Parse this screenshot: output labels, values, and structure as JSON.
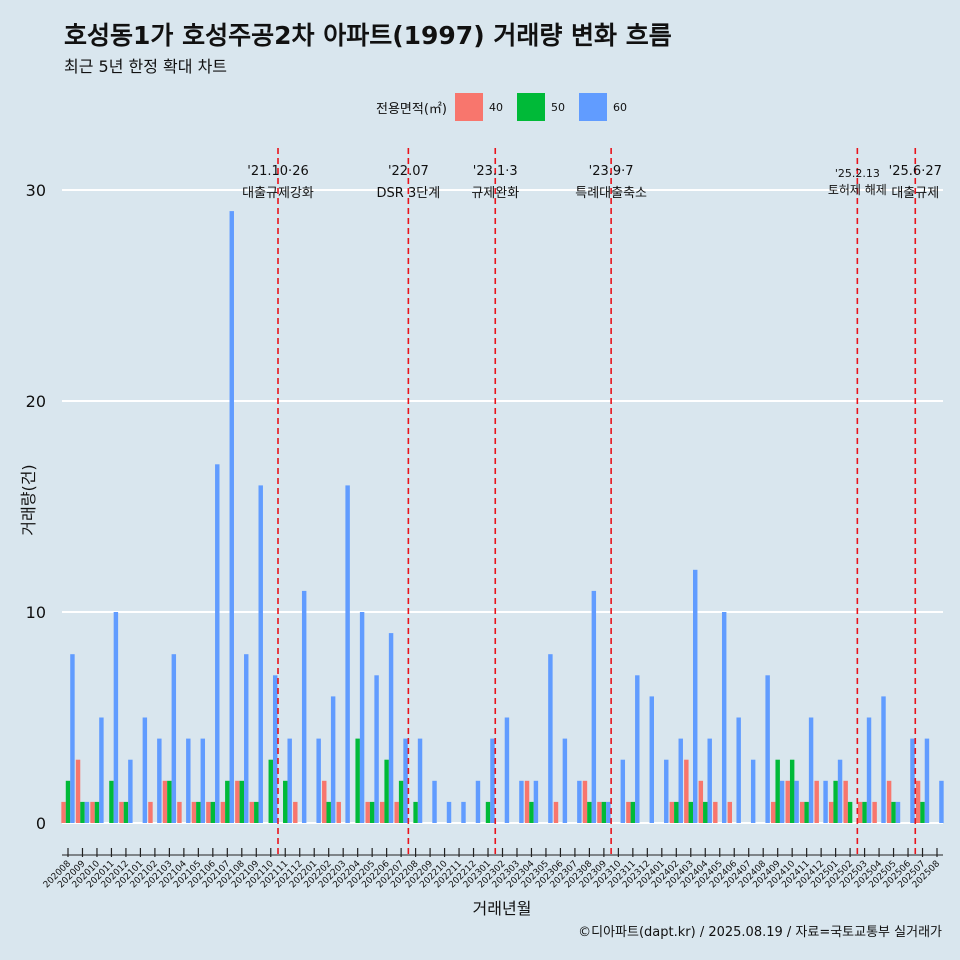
{
  "chart_data": {
    "type": "bar",
    "title": "호성동1가 호성주공2차 아파트(1997) 거래량 변화 흐름",
    "subtitle": "최근 5년 한정 확대 차트",
    "xlabel": "거래년월",
    "ylabel": "거래량(건)",
    "ylim": [
      0,
      30
    ],
    "y_ticks": [
      0,
      10,
      20,
      30
    ],
    "legend_title": "전용면적(㎡)",
    "legend_position": "top",
    "grid": "horizontal",
    "caption": "©디아파트(dapt.kr) / 2025.08.19 / 자료=국토교통부 실거래가",
    "categories": [
      "202008",
      "202009",
      "202010",
      "202011",
      "202012",
      "202101",
      "202102",
      "202103",
      "202104",
      "202105",
      "202106",
      "202107",
      "202108",
      "202109",
      "202110",
      "202111",
      "202112",
      "202201",
      "202202",
      "202203",
      "202204",
      "202205",
      "202206",
      "202207",
      "202208",
      "202209",
      "202210",
      "202211",
      "202212",
      "202301",
      "202302",
      "202303",
      "202304",
      "202305",
      "202306",
      "202307",
      "202308",
      "202309",
      "202310",
      "202311",
      "202312",
      "202401",
      "202402",
      "202403",
      "202404",
      "202405",
      "202406",
      "202407",
      "202408",
      "202409",
      "202410",
      "202411",
      "202412",
      "202501",
      "202502",
      "202503",
      "202504",
      "202505",
      "202506",
      "202507",
      "202508"
    ],
    "series": [
      {
        "name": "40",
        "color": "#f8766d",
        "values": [
          1,
          3,
          1,
          0,
          1,
          0,
          1,
          2,
          1,
          1,
          1,
          1,
          2,
          1,
          0,
          0,
          1,
          0,
          2,
          1,
          0,
          1,
          1,
          1,
          0,
          0,
          0,
          0,
          0,
          0,
          0,
          0,
          2,
          0,
          1,
          0,
          2,
          1,
          0,
          1,
          0,
          0,
          1,
          3,
          2,
          1,
          1,
          0,
          0,
          1,
          2,
          1,
          2,
          1,
          2,
          1,
          1,
          2,
          0,
          2,
          0
        ]
      },
      {
        "name": "50",
        "color": "#00ba38",
        "values": [
          2,
          1,
          1,
          2,
          1,
          0,
          0,
          2,
          0,
          1,
          1,
          2,
          2,
          1,
          3,
          2,
          0,
          0,
          1,
          0,
          4,
          1,
          3,
          2,
          1,
          0,
          0,
          0,
          0,
          1,
          0,
          0,
          1,
          0,
          0,
          0,
          1,
          1,
          0,
          1,
          0,
          0,
          1,
          1,
          1,
          0,
          0,
          0,
          0,
          3,
          3,
          1,
          0,
          2,
          1,
          1,
          0,
          1,
          0,
          1,
          0
        ]
      },
      {
        "name": "60",
        "color": "#619cff",
        "values": [
          8,
          1,
          5,
          10,
          3,
          5,
          4,
          8,
          4,
          4,
          17,
          29,
          8,
          16,
          7,
          4,
          11,
          4,
          6,
          16,
          10,
          7,
          9,
          4,
          4,
          2,
          1,
          1,
          2,
          4,
          5,
          2,
          2,
          8,
          4,
          2,
          11,
          1,
          3,
          7,
          6,
          3,
          4,
          12,
          4,
          10,
          5,
          3,
          7,
          2,
          2,
          5,
          2,
          3,
          0,
          5,
          6,
          1,
          4,
          4,
          2
        ]
      }
    ],
    "events": [
      {
        "after": "202110",
        "date": "'21.10·26",
        "label": "대출규제강화"
      },
      {
        "after": "202207",
        "date": "'22.07",
        "label": "DSR 3단계"
      },
      {
        "after": "202301",
        "date": "'23.1·3",
        "label": "규제완화"
      },
      {
        "after": "202309",
        "date": "'23.9·7",
        "label": "특례대출축소"
      },
      {
        "after": "202502",
        "date": "'25.2.13",
        "label": "토허제 해제"
      },
      {
        "after": "202506",
        "date": "'25.6·27",
        "label": "대출규제"
      }
    ]
  }
}
